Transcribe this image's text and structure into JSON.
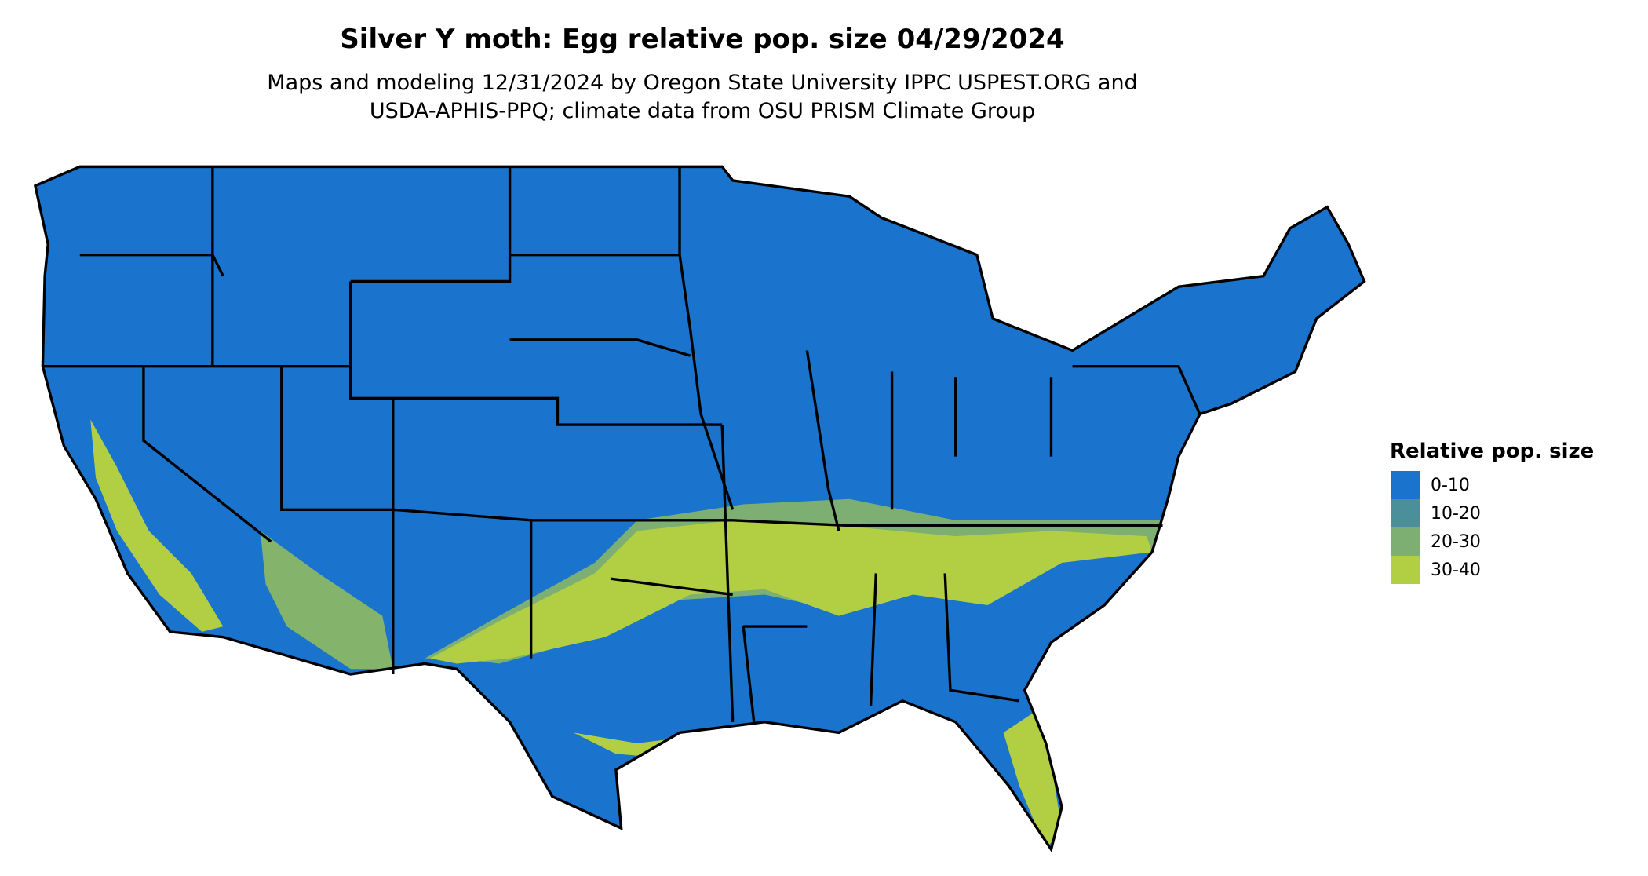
{
  "title": "Silver Y moth: Egg relative pop. size 04/29/2024",
  "subtitle_line1": "Maps and modeling 12/31/2024 by Oregon State University IPPC USPEST.ORG and",
  "subtitle_line2": "USDA-APHIS-PPQ; climate data from OSU PRISM Climate Group",
  "legend": {
    "title": "Relative pop. size",
    "items": [
      {
        "label": "0-10",
        "color": "#1a73cc"
      },
      {
        "label": "10-20",
        "color": "#4a8f9a"
      },
      {
        "label": "20-30",
        "color": "#7daf73"
      },
      {
        "label": "30-40",
        "color": "#b2cf43"
      }
    ]
  },
  "colors": {
    "border": "#000000",
    "background": "#ffffff"
  }
}
